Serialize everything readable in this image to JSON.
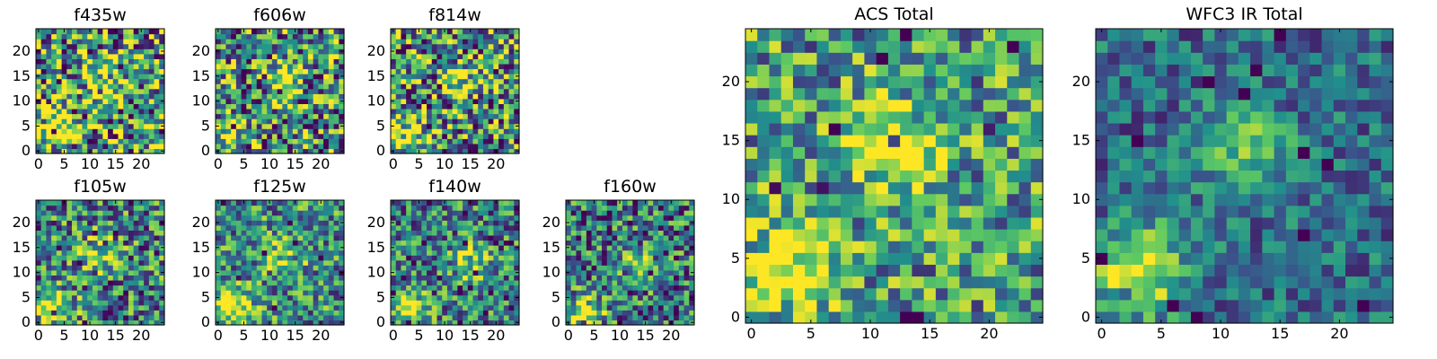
{
  "figure": {
    "colormap": [
      "#440154",
      "#3b528b",
      "#21918c",
      "#5ec962",
      "#fde725"
    ]
  },
  "chart_data": [
    {
      "id": "f435w",
      "type": "heatmap",
      "title": "f435w",
      "grid_size": 25,
      "seed": 11,
      "xlim": [
        0,
        25
      ],
      "ylim": [
        0,
        25
      ],
      "xticks": [
        0,
        5,
        10,
        15,
        20
      ],
      "yticks": [
        0,
        5,
        10,
        15,
        20
      ],
      "bright_spots": [
        [
          3,
          4,
          0.35
        ],
        [
          13,
          14,
          0.25
        ]
      ],
      "noise": 0.6,
      "base": 0.55,
      "grid": false,
      "colormap": "viridis"
    },
    {
      "id": "f606w",
      "type": "heatmap",
      "title": "f606w",
      "grid_size": 25,
      "seed": 23,
      "xlim": [
        0,
        25
      ],
      "ylim": [
        0,
        25
      ],
      "xticks": [
        0,
        5,
        10,
        15,
        20
      ],
      "yticks": [
        0,
        5,
        10,
        15,
        20
      ],
      "bright_spots": [
        [
          2,
          3,
          0.4
        ],
        [
          13,
          14,
          0.35
        ]
      ],
      "noise": 0.55,
      "base": 0.5,
      "grid": false,
      "colormap": "viridis"
    },
    {
      "id": "f814w",
      "type": "heatmap",
      "title": "f814w",
      "grid_size": 25,
      "seed": 37,
      "xlim": [
        0,
        25
      ],
      "ylim": [
        0,
        25
      ],
      "xticks": [
        0,
        5,
        10,
        15,
        20
      ],
      "yticks": [
        0,
        5,
        10,
        15,
        20
      ],
      "bright_spots": [
        [
          3,
          3,
          0.45
        ],
        [
          13,
          14,
          0.4
        ]
      ],
      "noise": 0.55,
      "base": 0.5,
      "grid": false,
      "colormap": "viridis"
    },
    {
      "id": "f105w",
      "type": "heatmap",
      "title": "f105w",
      "grid_size": 25,
      "seed": 41,
      "xlim": [
        0,
        25
      ],
      "ylim": [
        0,
        25
      ],
      "xticks": [
        0,
        5,
        10,
        15,
        20
      ],
      "yticks": [
        0,
        5,
        10,
        15,
        20
      ],
      "bright_spots": [
        [
          3,
          3,
          0.55
        ],
        [
          12,
          14,
          0.35
        ]
      ],
      "noise": 0.45,
      "base": 0.45,
      "grid": false,
      "colormap": "viridis"
    },
    {
      "id": "f125w",
      "type": "heatmap",
      "title": "f125w",
      "grid_size": 25,
      "seed": 53,
      "xlim": [
        0,
        25
      ],
      "ylim": [
        0,
        25
      ],
      "xticks": [
        0,
        5,
        10,
        15,
        20
      ],
      "yticks": [
        0,
        5,
        10,
        15,
        20
      ],
      "bright_spots": [
        [
          3,
          3,
          0.55
        ],
        [
          13,
          13,
          0.3
        ]
      ],
      "noise": 0.4,
      "base": 0.5,
      "grid": false,
      "colormap": "viridis"
    },
    {
      "id": "f140w",
      "type": "heatmap",
      "title": "f140w",
      "grid_size": 25,
      "seed": 67,
      "xlim": [
        0,
        25
      ],
      "ylim": [
        0,
        25
      ],
      "xticks": [
        0,
        5,
        10,
        15,
        20
      ],
      "yticks": [
        0,
        5,
        10,
        15,
        20
      ],
      "bright_spots": [
        [
          3,
          3,
          0.55
        ],
        [
          15,
          12,
          0.35
        ]
      ],
      "noise": 0.4,
      "base": 0.45,
      "grid": false,
      "colormap": "viridis"
    },
    {
      "id": "f160w",
      "type": "heatmap",
      "title": "f160w",
      "grid_size": 25,
      "seed": 79,
      "xlim": [
        0,
        25
      ],
      "ylim": [
        0,
        25
      ],
      "xticks": [
        0,
        5,
        10,
        15,
        20
      ],
      "yticks": [
        0,
        5,
        10,
        15,
        20
      ],
      "bright_spots": [
        [
          3,
          2,
          0.6
        ],
        [
          13,
          12,
          0.35
        ]
      ],
      "noise": 0.45,
      "base": 0.4,
      "grid": false,
      "colormap": "viridis"
    },
    {
      "id": "acs-total",
      "type": "heatmap",
      "title": "ACS Total",
      "grid_size": 25,
      "seed": 97,
      "xlim": [
        0,
        25
      ],
      "ylim": [
        0,
        25
      ],
      "xticks": [
        0,
        5,
        10,
        15,
        20
      ],
      "yticks": [
        0,
        5,
        10,
        15,
        20
      ],
      "bright_spots": [
        [
          3,
          4,
          0.45
        ],
        [
          12,
          14,
          0.45
        ]
      ],
      "noise": 0.4,
      "base": 0.55,
      "grid": false,
      "colormap": "viridis"
    },
    {
      "id": "wfc3-ir-total",
      "type": "heatmap",
      "title": "WFC3 IR Total",
      "grid_size": 25,
      "seed": 113,
      "xlim": [
        0,
        25
      ],
      "ylim": [
        0,
        25
      ],
      "xticks": [
        0,
        5,
        10,
        15,
        20
      ],
      "yticks": [
        0,
        5,
        10,
        15,
        20
      ],
      "bright_spots": [
        [
          3,
          4,
          0.65
        ],
        [
          12,
          14,
          0.4
        ]
      ],
      "noise": 0.25,
      "base": 0.35,
      "grid": false,
      "colormap": "viridis"
    }
  ]
}
